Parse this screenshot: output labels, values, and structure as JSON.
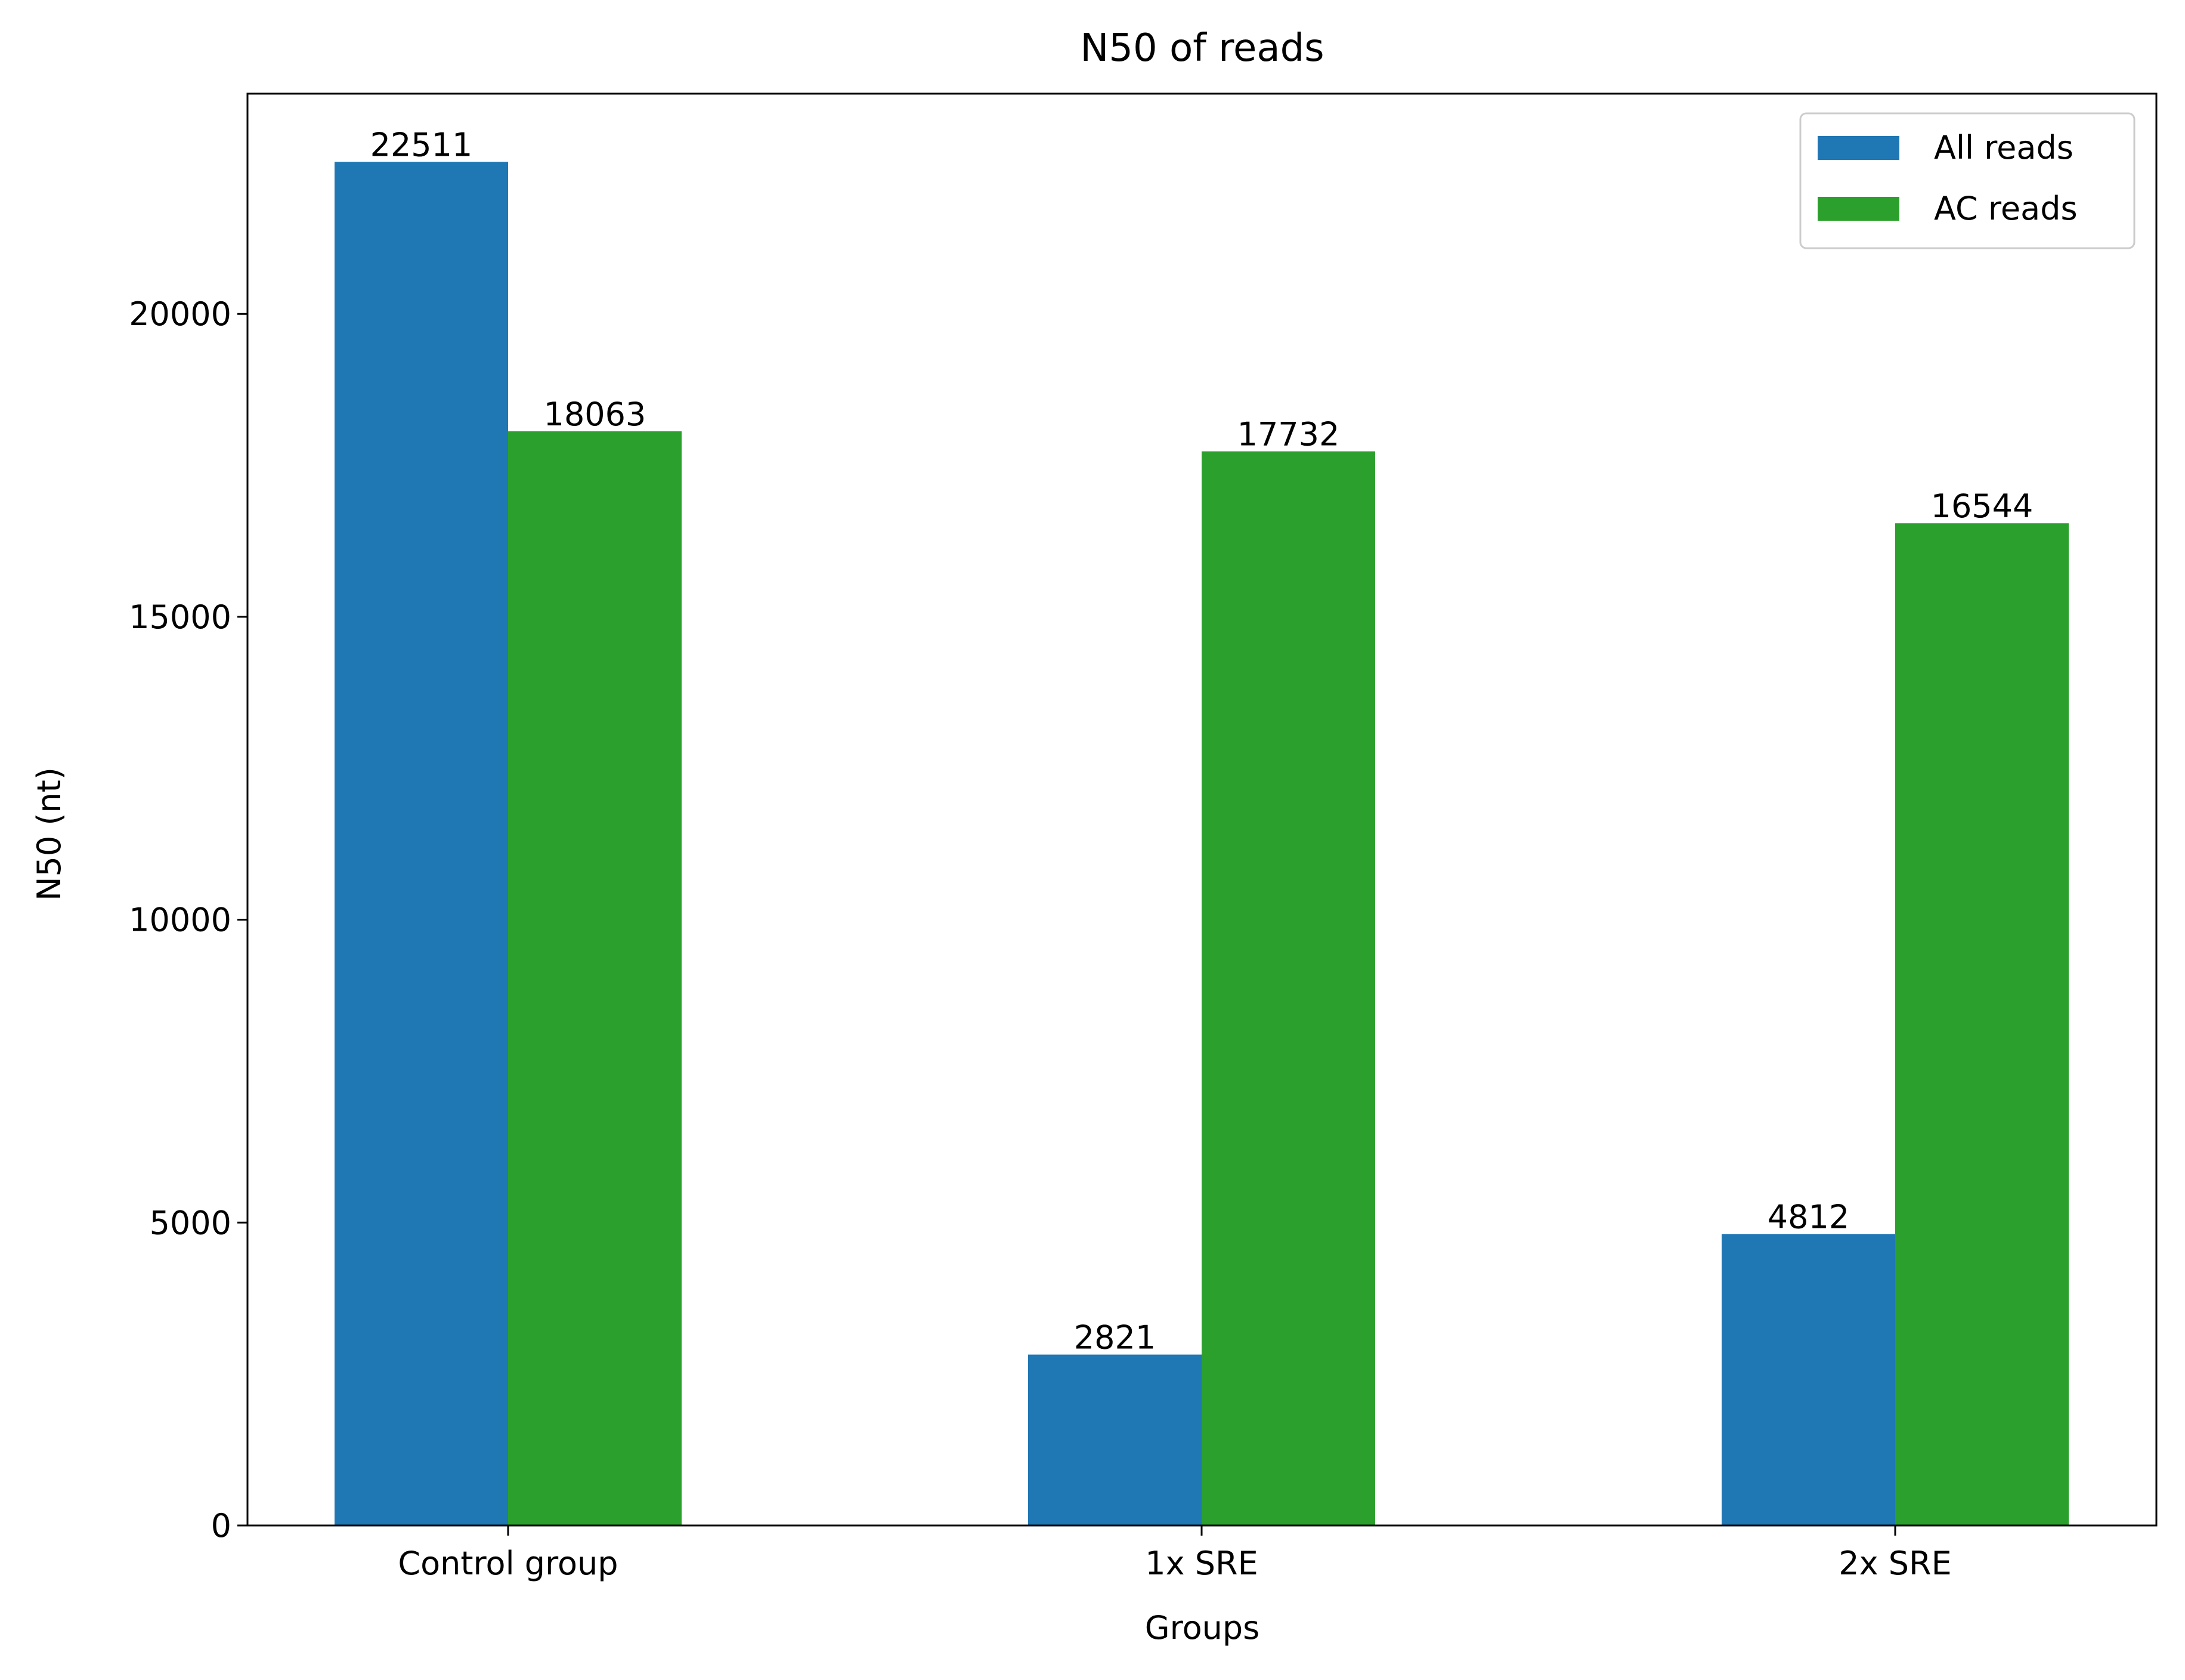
{
  "chart_data": {
    "type": "bar",
    "title": "N50 of reads",
    "xlabel": "Groups",
    "ylabel": "N50 (nt)",
    "categories": [
      "Control group",
      "1x SRE",
      "2x SRE"
    ],
    "series": [
      {
        "name": "All reads",
        "color": "#1f77b4",
        "values": [
          22511,
          2821,
          4812
        ]
      },
      {
        "name": "AC reads",
        "color": "#2ca02c",
        "values": [
          18063,
          17732,
          16544
        ]
      }
    ],
    "ylim": [
      0,
      23636.55
    ],
    "yticks": [
      0,
      5000,
      10000,
      15000,
      20000
    ],
    "data_labels": true,
    "grid": false,
    "legend_position": "top-right"
  }
}
